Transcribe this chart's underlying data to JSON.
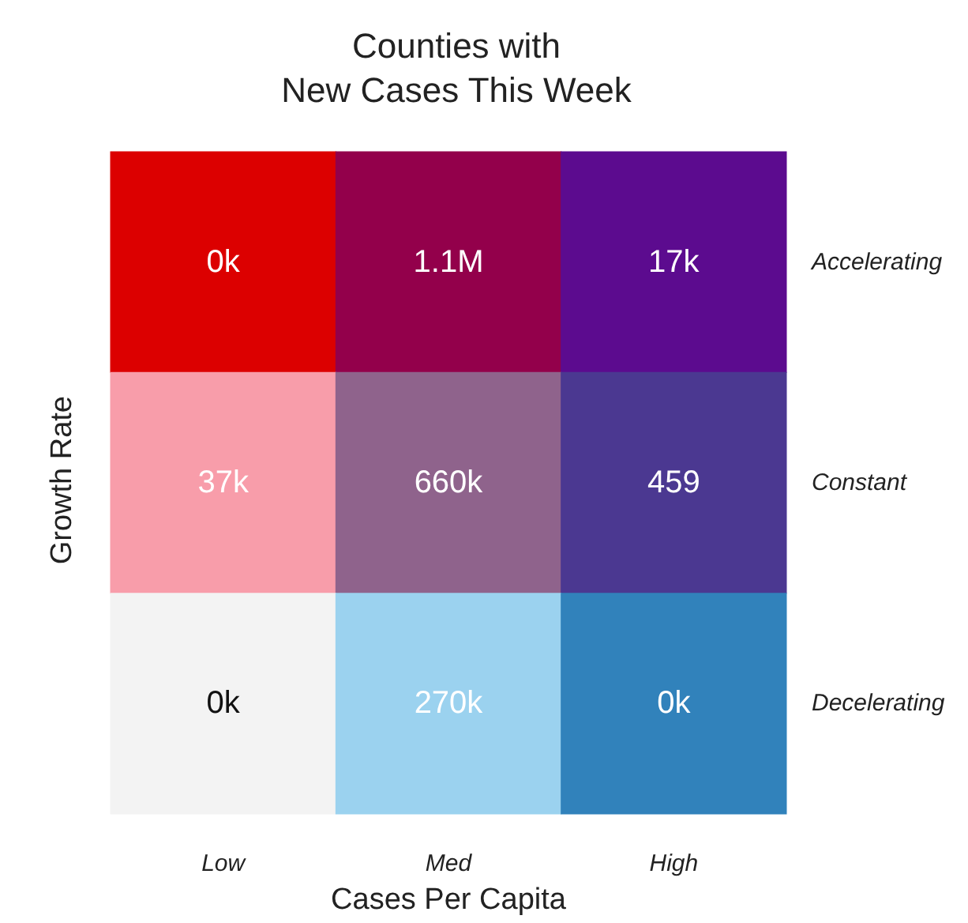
{
  "chart_data": {
    "type": "heatmap",
    "title": "Counties with\nNew Cases This Week",
    "xlabel": "Cases Per Capita",
    "ylabel": "Growth Rate",
    "categories": [
      "Low",
      "Med",
      "High"
    ],
    "y_categories": [
      "Accelerating",
      "Constant",
      "Decelerating"
    ],
    "cells": [
      [
        0,
        1100000,
        17000
      ],
      [
        37000,
        660000,
        459
      ],
      [
        0,
        270000,
        0
      ]
    ],
    "cell_labels": [
      [
        "0k",
        "1.1M",
        "17k"
      ],
      [
        "37k",
        "660k",
        "459"
      ],
      [
        "0k",
        "270k",
        "0k"
      ]
    ],
    "colors": [
      [
        "#dc0000",
        "#93004b",
        "#5c0b8f"
      ],
      [
        "#f89daa",
        "#8f638c",
        "#4b3891"
      ],
      [
        "#f3f3f3",
        "#9bd2ef",
        "#3182bb"
      ]
    ]
  }
}
